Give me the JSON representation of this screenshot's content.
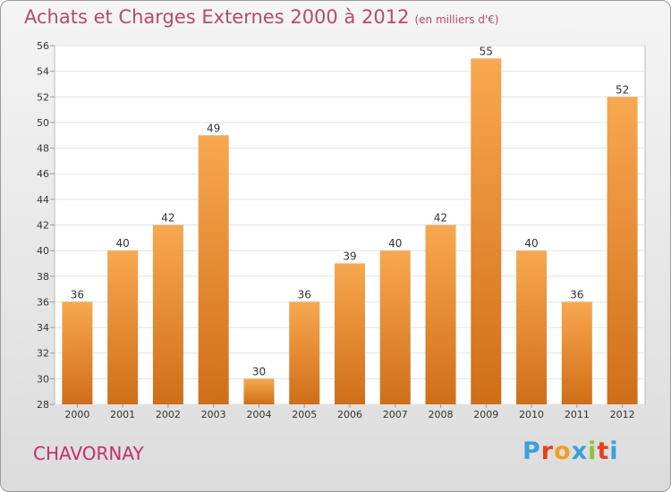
{
  "header": {
    "title": "Achats et Charges Externes 2000 à 2012",
    "subtitle": "(en milliers d'€)"
  },
  "footer": {
    "city": "CHAVORNAY",
    "logo_text": "Proxiti",
    "logo_colors": [
      "#3aa0d8",
      "#e8401c",
      "#f0a020",
      "#3aa0d8",
      "#8ac43c",
      "#e8401c",
      "#3aa0d8"
    ]
  },
  "chart_data": {
    "type": "bar",
    "categories": [
      "2000",
      "2001",
      "2002",
      "2003",
      "2004",
      "2005",
      "2006",
      "2007",
      "2008",
      "2009",
      "2010",
      "2011",
      "2012"
    ],
    "values": [
      36,
      40,
      42,
      49,
      30,
      36,
      39,
      40,
      42,
      55,
      40,
      36,
      52
    ],
    "ylim": [
      28,
      56
    ],
    "yticks": [
      28,
      30,
      32,
      34,
      36,
      38,
      40,
      42,
      44,
      46,
      48,
      50,
      52,
      54,
      56
    ],
    "grid": true,
    "bar_color_top": "#f8a850",
    "bar_color_bottom": "#d06e18"
  }
}
